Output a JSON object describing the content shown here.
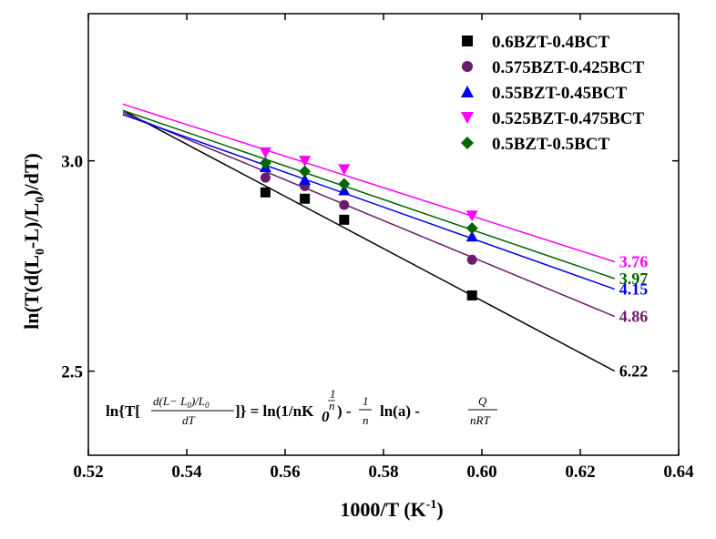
{
  "chart_data": {
    "type": "scatter",
    "xlabel": "1000/T (K",
    "xlabel_sup": "-1",
    "xlabel_close": ")",
    "ylabel_parts": [
      "ln(T(d(L",
      "0",
      "-L)/L",
      "0",
      ")/dT)"
    ],
    "xlim": [
      0.52,
      0.64
    ],
    "ylim": [
      2.3,
      3.35
    ],
    "xticks": [
      0.52,
      0.54,
      0.56,
      0.58,
      0.6,
      0.62,
      0.64
    ],
    "xtick_labels": [
      "0.52",
      "0.54",
      "0.56",
      "0.58",
      "0.60",
      "0.62",
      "0.64"
    ],
    "yticks": [
      2.5,
      3.0
    ],
    "ytick_labels": [
      "2.5",
      "3.0"
    ],
    "legend_position": "top-right",
    "x": [
      0.556,
      0.564,
      0.572,
      0.598
    ],
    "series": [
      {
        "name": "0.6BZT-0.4BCT",
        "marker": "square",
        "color": "#000000",
        "y": [
          2.925,
          2.91,
          2.86,
          2.68
        ],
        "fit": {
          "x": [
            0.527,
            0.627
          ],
          "y": [
            3.12,
            2.5
          ]
        },
        "end_label": "6.22"
      },
      {
        "name": "0.575BZT-0.425BCT",
        "marker": "circle",
        "color": "#6a1b6a",
        "y": [
          2.96,
          2.94,
          2.895,
          2.765
        ],
        "fit": {
          "x": [
            0.527,
            0.627
          ],
          "y": [
            3.115,
            2.63
          ]
        },
        "end_label": "4.86"
      },
      {
        "name": "0.55BZT-0.45BCT",
        "marker": "triangle-up",
        "color": "#0000ee",
        "y": [
          2.985,
          2.955,
          2.93,
          2.82
        ],
        "fit": {
          "x": [
            0.527,
            0.627
          ],
          "y": [
            3.11,
            2.695
          ]
        },
        "end_label": "4.15"
      },
      {
        "name": "0.525BZT-0.475BCT",
        "marker": "triangle-down",
        "color": "#ff00ff",
        "y": [
          3.02,
          3.0,
          2.98,
          2.87
        ],
        "fit": {
          "x": [
            0.527,
            0.627
          ],
          "y": [
            3.135,
            2.76
          ]
        },
        "end_label": "3.76"
      },
      {
        "name": "0.5BZT-0.5BCT",
        "marker": "diamond",
        "color": "#006600",
        "y": [
          2.995,
          2.975,
          2.945,
          2.84
        ],
        "fit": {
          "x": [
            0.527,
            0.627
          ],
          "y": [
            3.12,
            2.72
          ]
        },
        "end_label": "3.97"
      }
    ],
    "equation": {
      "lhs_prefix": "ln{T[",
      "lhs_num": "d(L− L",
      "lhs_num_sub": "0",
      "lhs_num_tail": ")/L",
      "lhs_num_tail_sub": "0",
      "lhs_den": "dT",
      "lhs_suffix": "]} = ln(1/nK",
      "k_sub": "0",
      "k_sup_num": "1",
      "k_sup_den": "n",
      "mid": ") -",
      "frac1_num": "1",
      "frac1_den": "n",
      "ln_a": "ln(a) -",
      "frac2_num": "Q",
      "frac2_den": "nRT"
    }
  }
}
